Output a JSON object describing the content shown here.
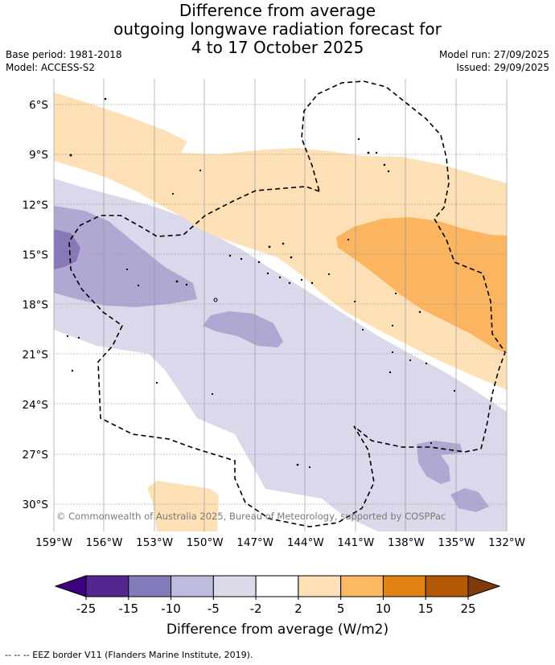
{
  "title": {
    "line1": "Difference from average",
    "line2": "outgoing longwave radiation forecast for",
    "line3": "4 to 17 October 2025"
  },
  "meta": {
    "base_period": "Base period: 1981-2018",
    "model": "Model: ACCESS-S2",
    "model_run": "Model run: 27/09/2025",
    "issued": "Issued: 29/09/2025"
  },
  "map": {
    "lat_labels": [
      "6°S",
      "9°S",
      "12°S",
      "15°S",
      "18°S",
      "21°S",
      "24°S",
      "27°S",
      "30°S"
    ],
    "lat_values": [
      -6,
      -9,
      -12,
      -15,
      -18,
      -21,
      -24,
      -27,
      -30
    ],
    "lon_labels": [
      "159°W",
      "156°W",
      "153°W",
      "150°W",
      "147°W",
      "144°W",
      "141°W",
      "138°W",
      "135°W",
      "132°W"
    ],
    "lon_values": [
      -159,
      -156,
      -153,
      -150,
      -147,
      -144,
      -141,
      -138,
      -135,
      -132
    ],
    "copyright": "© Commonwealth of Australia 2025, Bureau of Meteorology, supported by COSPPac"
  },
  "legend": {
    "label": "Difference from average (W/m2)",
    "ticks": [
      "-25",
      "-15",
      "-10",
      "-5",
      "-2",
      "2",
      "5",
      "10",
      "15",
      "25"
    ],
    "colors": [
      "#3f007d",
      "#54278f",
      "#807dba",
      "#bcbddc",
      "#dadaeb",
      "#ffffff",
      "#fee0b6",
      "#fdb863",
      "#e08214",
      "#b35806",
      "#7f3b08"
    ]
  },
  "footer": "--  --  -- EEZ border V11 (Flanders Marine Institute, 2019)."
}
